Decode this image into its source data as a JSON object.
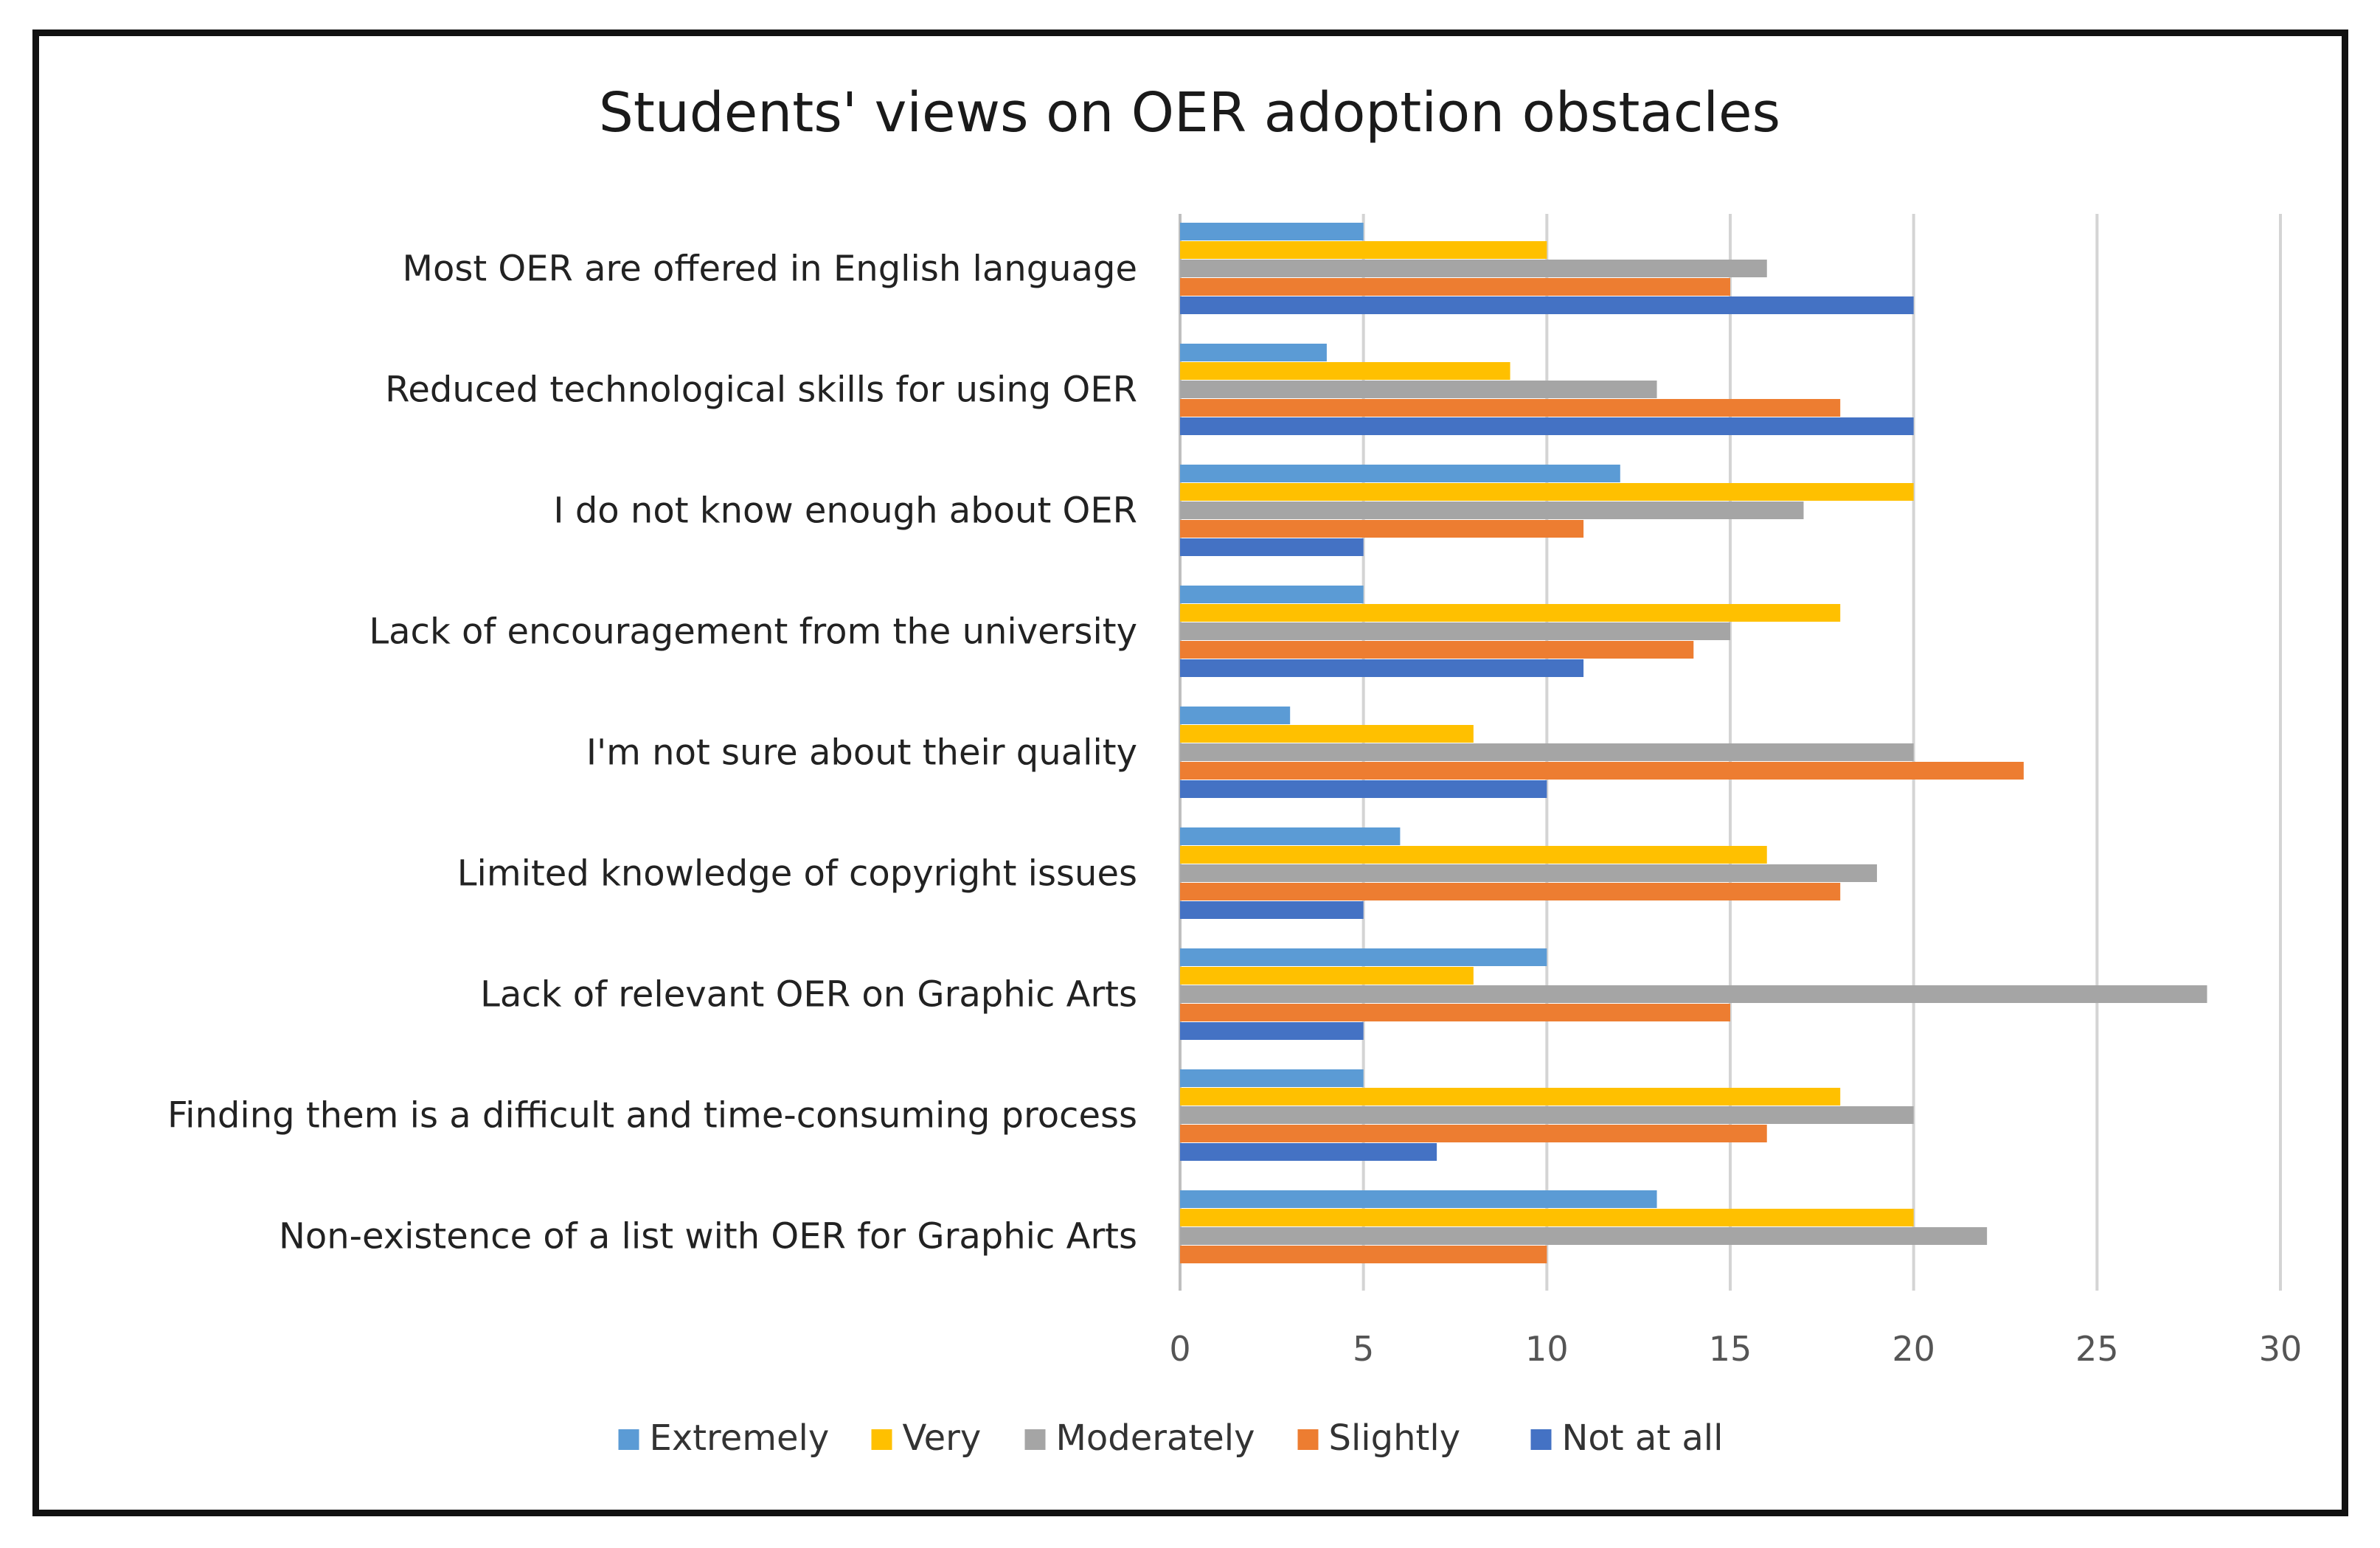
{
  "chart_data": {
    "type": "bar",
    "orientation": "horizontal",
    "title": "Students' views on OER adoption obstacles",
    "xlabel": "",
    "ylabel": "",
    "xlim": [
      0,
      30
    ],
    "ticks": [
      "0",
      "5",
      "10",
      "15",
      "20",
      "25",
      "30"
    ],
    "tick_values": [
      0,
      5,
      10,
      15,
      20,
      25,
      30
    ],
    "grid": true,
    "legend_position": "bottom",
    "categories": [
      "Most OER are offered in English language",
      "Reduced technological skills for using OER",
      "I do not know enough about OER",
      "Lack of encouragement from the university",
      "I'm not sure about their quality",
      "Limited knowledge of copyright issues",
      "Lack of relevant OER on Graphic Arts",
      "Finding them is a difficult and time-consuming process",
      "Non-existence of a list with OER for Graphic Arts"
    ],
    "series": [
      {
        "name": "Extremely",
        "color": "#5b9bd5",
        "values": [
          5,
          4,
          12,
          5,
          3,
          6,
          10,
          5,
          13
        ]
      },
      {
        "name": "Very",
        "color": "#ffc000",
        "values": [
          10,
          9,
          20,
          18,
          8,
          16,
          8,
          18,
          20
        ]
      },
      {
        "name": "Moderately",
        "color": "#a5a5a5",
        "values": [
          16,
          13,
          17,
          15,
          20,
          19,
          28,
          20,
          22
        ]
      },
      {
        "name": "Slightly",
        "color": "#ed7d31",
        "values": [
          15,
          18,
          11,
          14,
          23,
          18,
          15,
          16,
          10
        ]
      },
      {
        "name": "Not at all",
        "color": "#4472c4",
        "values": [
          20,
          20,
          5,
          11,
          10,
          5,
          5,
          7,
          0
        ]
      }
    ]
  }
}
